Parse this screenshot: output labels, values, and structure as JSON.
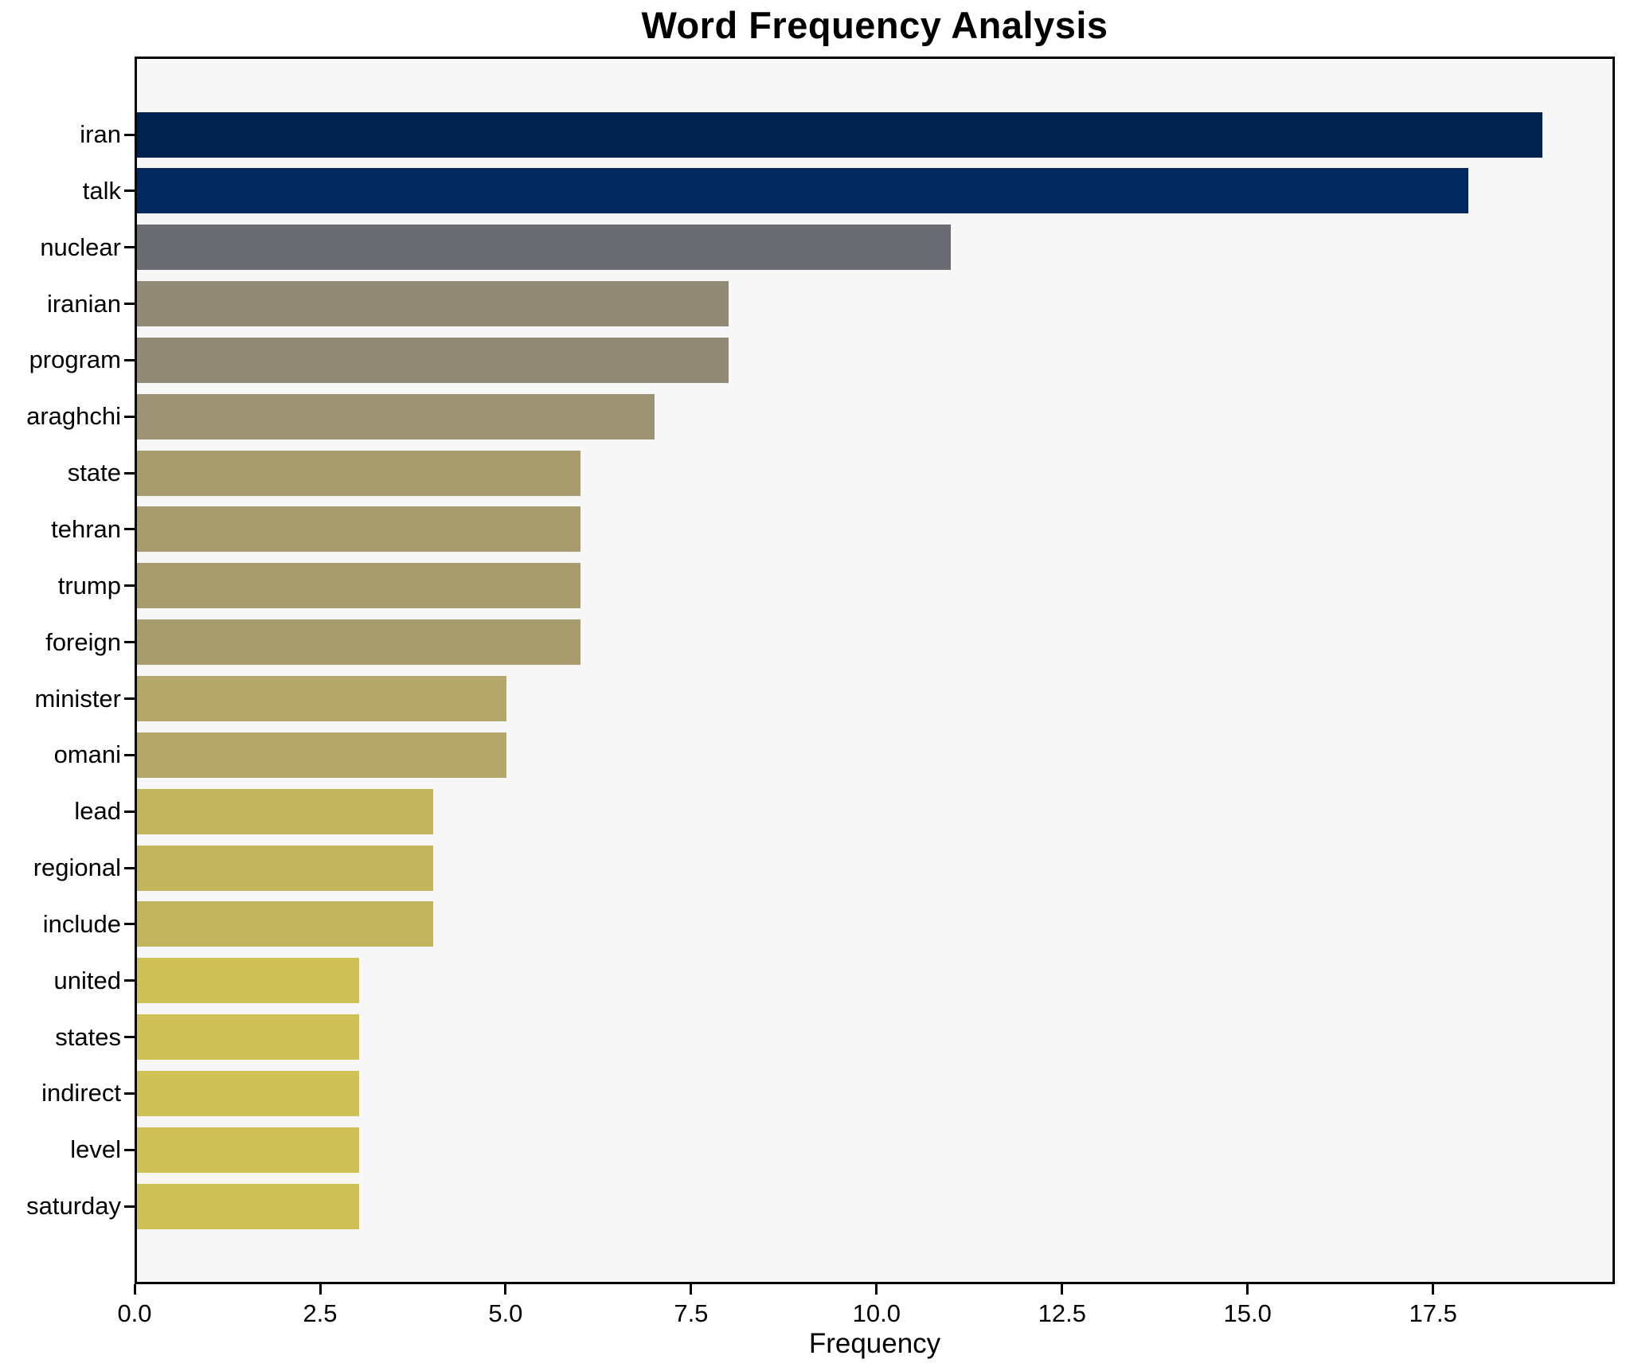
{
  "figure": {
    "title": "Word Frequency Analysis",
    "xlabel": "Frequency"
  },
  "chart_data": {
    "type": "bar",
    "orientation": "horizontal",
    "title": "Word Frequency Analysis",
    "xlabel": "Frequency",
    "ylabel": "",
    "categories": [
      "iran",
      "talk",
      "nuclear",
      "iranian",
      "program",
      "araghchi",
      "state",
      "tehran",
      "trump",
      "foreign",
      "minister",
      "omani",
      "lead",
      "regional",
      "include",
      "united",
      "states",
      "indirect",
      "level",
      "saturday"
    ],
    "values": [
      19,
      18,
      11,
      8,
      8,
      7,
      6,
      6,
      6,
      6,
      5,
      5,
      4,
      4,
      4,
      3,
      3,
      3,
      3,
      3
    ],
    "bar_colors": [
      "#00224e",
      "#04295e",
      "#6a6c72",
      "#908a76",
      "#908a76",
      "#9b9374",
      "#a69c6e",
      "#a69c6e",
      "#a69c6e",
      "#a69c6e",
      "#b3a76a",
      "#b3a76a",
      "#c1b560",
      "#c1b560",
      "#c1b560",
      "#d0c156",
      "#d0c156",
      "#d0c156",
      "#d0c156",
      "#d0c156"
    ],
    "xlim": [
      0,
      19.95
    ],
    "xtick_values": [
      0,
      2.5,
      5,
      7.5,
      10,
      12.5,
      15,
      17.5
    ],
    "xtick_labels": [
      "0.0",
      "2.5",
      "5.0",
      "7.5",
      "10.0",
      "12.5",
      "15.0",
      "17.5"
    ],
    "grid": false,
    "legend_position": "none",
    "plot_background": "#f7f7f7",
    "figure_background": "#ffffff",
    "spine_color": "#000000",
    "text_color": "#000000"
  }
}
